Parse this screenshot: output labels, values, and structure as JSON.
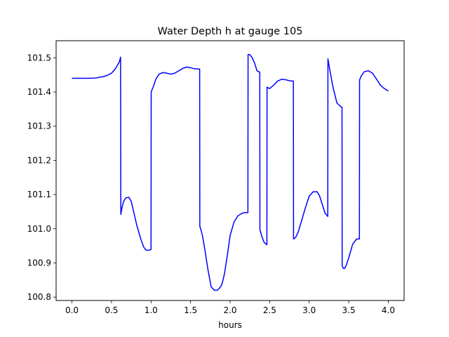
{
  "chart_data": {
    "type": "line",
    "title": "Water Depth h at gauge 105",
    "xlabel": "hours",
    "ylabel": "",
    "xlim": [
      -0.2,
      4.2
    ],
    "ylim": [
      100.79,
      101.55
    ],
    "grid": false,
    "x_ticks": [
      {
        "value": 0.0,
        "label": "0.0"
      },
      {
        "value": 0.5,
        "label": "0.5"
      },
      {
        "value": 1.0,
        "label": "1.0"
      },
      {
        "value": 1.5,
        "label": "1.5"
      },
      {
        "value": 2.0,
        "label": "2.0"
      },
      {
        "value": 2.5,
        "label": "2.5"
      },
      {
        "value": 3.0,
        "label": "3.0"
      },
      {
        "value": 3.5,
        "label": "3.5"
      },
      {
        "value": 4.0,
        "label": "4.0"
      }
    ],
    "y_ticks": [
      {
        "value": 100.8,
        "label": "100.8"
      },
      {
        "value": 100.9,
        "label": "100.9"
      },
      {
        "value": 101.0,
        "label": "101.0"
      },
      {
        "value": 101.1,
        "label": "101.1"
      },
      {
        "value": 101.2,
        "label": "101.2"
      },
      {
        "value": 101.3,
        "label": "101.3"
      },
      {
        "value": 101.4,
        "label": "101.4"
      },
      {
        "value": 101.5,
        "label": "101.5"
      }
    ],
    "series": [
      {
        "color": "#0000ff",
        "x": [
          0.0,
          0.1,
          0.2,
          0.3,
          0.4,
          0.45,
          0.5,
          0.55,
          0.6,
          0.615,
          0.618,
          0.63,
          0.65,
          0.68,
          0.72,
          0.75,
          0.78,
          0.82,
          0.87,
          0.91,
          0.94,
          0.97,
          1.0,
          1.002,
          1.01,
          1.03,
          1.06,
          1.1,
          1.15,
          1.2,
          1.25,
          1.3,
          1.35,
          1.4,
          1.45,
          1.5,
          1.55,
          1.6,
          1.615,
          1.617,
          1.63,
          1.65,
          1.68,
          1.72,
          1.76,
          1.8,
          1.84,
          1.88,
          1.9,
          1.93,
          1.97,
          2.0,
          2.05,
          2.1,
          2.15,
          2.18,
          2.21,
          2.225,
          2.227,
          2.25,
          2.28,
          2.31,
          2.34,
          2.375,
          2.377,
          2.4,
          2.43,
          2.465,
          2.467,
          2.5,
          2.55,
          2.6,
          2.65,
          2.7,
          2.75,
          2.8,
          2.802,
          2.83,
          2.86,
          2.9,
          2.95,
          3.0,
          3.05,
          3.1,
          3.13,
          3.16,
          3.2,
          3.235,
          3.237,
          3.26,
          3.3,
          3.35,
          3.4,
          3.415,
          3.417,
          3.43,
          3.45,
          3.47,
          3.5,
          3.55,
          3.6,
          3.635,
          3.637,
          3.66,
          3.7,
          3.75,
          3.8,
          3.85,
          3.9,
          3.95,
          4.0
        ],
        "y": [
          101.44,
          101.44,
          101.44,
          101.441,
          101.445,
          101.449,
          101.455,
          101.468,
          101.488,
          101.502,
          101.042,
          101.058,
          101.078,
          101.09,
          101.092,
          101.08,
          101.05,
          101.01,
          100.97,
          100.945,
          100.937,
          100.937,
          100.939,
          101.4,
          101.405,
          101.416,
          101.437,
          101.452,
          101.457,
          101.455,
          101.452,
          101.455,
          101.462,
          101.469,
          101.473,
          101.471,
          101.468,
          101.467,
          101.467,
          101.007,
          100.998,
          100.98,
          100.94,
          100.88,
          100.83,
          100.82,
          100.82,
          100.83,
          100.84,
          100.87,
          100.93,
          100.98,
          101.02,
          101.038,
          101.045,
          101.047,
          101.047,
          101.047,
          101.51,
          101.509,
          101.5,
          101.484,
          101.462,
          101.458,
          100.998,
          100.978,
          100.96,
          100.953,
          101.414,
          101.41,
          101.42,
          101.432,
          101.437,
          101.436,
          101.433,
          101.432,
          100.97,
          100.975,
          100.99,
          101.02,
          101.06,
          101.095,
          101.108,
          101.108,
          101.097,
          101.075,
          101.046,
          101.036,
          101.497,
          101.465,
          101.415,
          101.368,
          101.357,
          101.355,
          100.892,
          100.884,
          100.884,
          100.894,
          100.915,
          100.955,
          100.97,
          100.97,
          101.435,
          101.448,
          101.46,
          101.462,
          101.455,
          101.438,
          101.42,
          101.41,
          101.403
        ]
      }
    ]
  }
}
